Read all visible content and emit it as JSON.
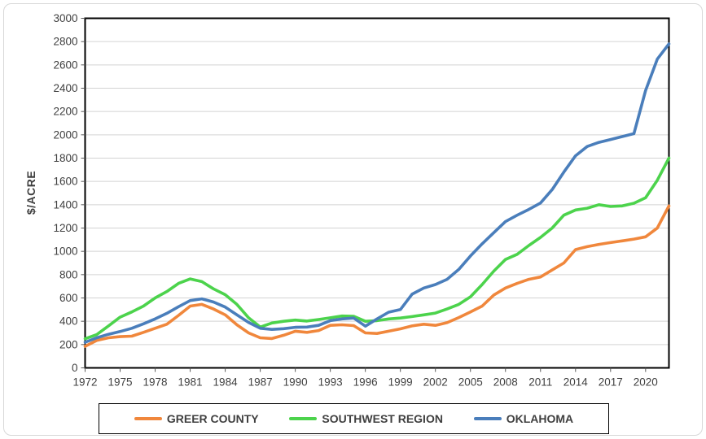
{
  "chart_data": {
    "type": "line",
    "title": "",
    "xlabel": "",
    "ylabel": "$/ACRE",
    "ylim": [
      0,
      3000
    ],
    "ytick_step": 200,
    "ytick_labels": [
      "0",
      "200",
      "400",
      "600",
      "800",
      "1000",
      "1200",
      "1400",
      "1600",
      "1800",
      "2000",
      "2200",
      "2400",
      "2600",
      "2800",
      "3000"
    ],
    "x": [
      1972,
      1973,
      1974,
      1975,
      1976,
      1977,
      1978,
      1979,
      1980,
      1981,
      1982,
      1983,
      1984,
      1985,
      1986,
      1987,
      1988,
      1989,
      1990,
      1991,
      1992,
      1993,
      1994,
      1995,
      1996,
      1997,
      1998,
      1999,
      2000,
      2001,
      2002,
      2003,
      2004,
      2005,
      2006,
      2007,
      2008,
      2009,
      2010,
      2011,
      2012,
      2013,
      2014,
      2015,
      2016,
      2017,
      2018,
      2019,
      2020,
      2021,
      2022
    ],
    "xtick_labels": [
      "1972",
      "1975",
      "1978",
      "1981",
      "1984",
      "1987",
      "1990",
      "1993",
      "1996",
      "1999",
      "2002",
      "2005",
      "2008",
      "2011",
      "2014",
      "2017",
      "2020"
    ],
    "grid": true,
    "legend_position": "bottom",
    "grid_color": "#d3d3d3",
    "axis_color": "#000000",
    "tick_label_color": "#404040",
    "series": [
      {
        "name": "GREER COUNTY",
        "color": "#F0873C",
        "values": [
          185,
          235,
          258,
          268,
          272,
          305,
          340,
          375,
          450,
          530,
          545,
          505,
          455,
          370,
          300,
          258,
          252,
          280,
          315,
          305,
          320,
          365,
          370,
          363,
          300,
          295,
          315,
          335,
          360,
          375,
          365,
          388,
          432,
          480,
          530,
          625,
          685,
          725,
          760,
          780,
          840,
          900,
          1015,
          1040,
          1060,
          1075,
          1090,
          1105,
          1125,
          1200,
          1390
        ]
      },
      {
        "name": "SOUTHWEST REGION",
        "color": "#4CD34C",
        "values": [
          250,
          285,
          360,
          435,
          480,
          530,
          600,
          655,
          725,
          763,
          740,
          678,
          628,
          545,
          430,
          350,
          385,
          400,
          410,
          402,
          415,
          430,
          445,
          443,
          400,
          405,
          420,
          428,
          440,
          455,
          470,
          505,
          545,
          610,
          715,
          830,
          930,
          975,
          1050,
          1120,
          1200,
          1310,
          1355,
          1370,
          1400,
          1385,
          1390,
          1413,
          1460,
          1610,
          1800
        ]
      },
      {
        "name": "OKLAHOMA",
        "color": "#4A7EBB",
        "values": [
          220,
          258,
          288,
          312,
          340,
          378,
          420,
          468,
          525,
          578,
          592,
          565,
          522,
          455,
          390,
          340,
          330,
          336,
          348,
          350,
          365,
          405,
          420,
          428,
          358,
          420,
          478,
          500,
          632,
          685,
          715,
          760,
          845,
          960,
          1065,
          1160,
          1255,
          1310,
          1360,
          1415,
          1530,
          1680,
          1820,
          1900,
          1935,
          1960,
          1985,
          2010,
          2380,
          2650,
          2780
        ]
      }
    ]
  }
}
